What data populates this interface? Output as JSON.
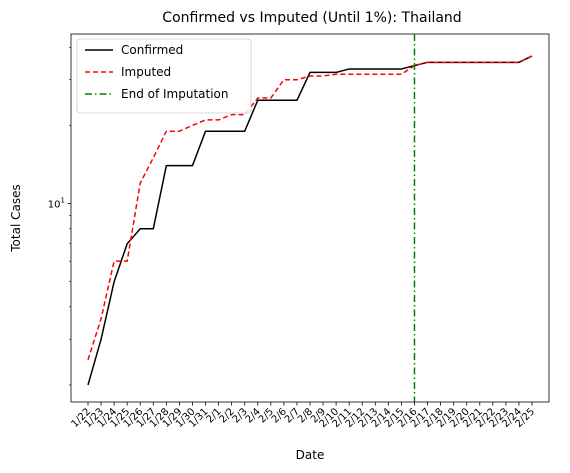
{
  "chart_data": {
    "type": "line",
    "title": "Confirmed vs Imputed (Until 1%): Thailand",
    "xlabel": "Date",
    "ylabel": "Total Cases",
    "yscale": "log",
    "ylim": [
      1.72,
      45
    ],
    "y_tick_labels": [
      {
        "value": 10,
        "base": "10",
        "exp": "1"
      }
    ],
    "grid": false,
    "legend_position": "top-left",
    "categories": [
      "1/22",
      "1/23",
      "1/24",
      "1/25",
      "1/26",
      "1/27",
      "1/28",
      "1/29",
      "1/30",
      "1/31",
      "2/1",
      "2/2",
      "2/3",
      "2/4",
      "2/5",
      "2/6",
      "2/7",
      "2/8",
      "2/9",
      "2/10",
      "2/11",
      "2/12",
      "2/13",
      "2/14",
      "2/15",
      "2/16",
      "2/17",
      "2/18",
      "2/19",
      "2/20",
      "2/21",
      "2/22",
      "2/23",
      "2/24",
      "2/25"
    ],
    "series": [
      {
        "name": "Confirmed",
        "color": "#000000",
        "style": "solid",
        "values": [
          2,
          3,
          5,
          7,
          8,
          8,
          14,
          14,
          14,
          19,
          19,
          19,
          19,
          25,
          25,
          25,
          25,
          32,
          32,
          32,
          33,
          33,
          33,
          33,
          33,
          34,
          35,
          35,
          35,
          35,
          35,
          35,
          35,
          35,
          37
        ]
      },
      {
        "name": "Imputed",
        "color": "#ff0000",
        "style": "dashed",
        "values": [
          2.5,
          3.6,
          6,
          6,
          12,
          15,
          19,
          19,
          20,
          21,
          21,
          22,
          22,
          25.5,
          25.5,
          30,
          30,
          31,
          31,
          31.5,
          31.5,
          31.5,
          31.5,
          31.5,
          31.5,
          34,
          35,
          35,
          35,
          35,
          35,
          35,
          35,
          35,
          37
        ]
      },
      {
        "name": "End of Imputation",
        "color": "#008000",
        "style": "dashdot",
        "vline_category": "2/16"
      }
    ]
  }
}
